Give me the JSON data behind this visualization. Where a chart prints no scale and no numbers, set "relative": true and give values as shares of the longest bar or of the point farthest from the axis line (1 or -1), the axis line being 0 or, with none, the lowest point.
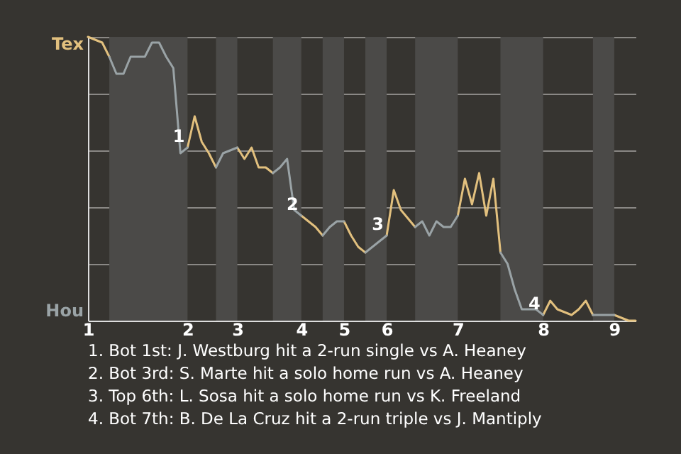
{
  "chart_data": {
    "type": "line",
    "relative": true,
    "categories": [
      "1",
      null,
      null,
      null,
      null,
      null,
      null,
      null,
      null,
      null,
      null,
      null,
      null,
      null,
      "2",
      null,
      null,
      null,
      null,
      null,
      null,
      "3",
      null,
      null,
      null,
      null,
      null,
      null,
      null,
      null,
      "4",
      null,
      null,
      null,
      null,
      null,
      "5",
      null,
      null,
      null,
      null,
      null,
      "6",
      null,
      null,
      null,
      null,
      null,
      null,
      null,
      null,
      null,
      "7",
      null,
      null,
      null,
      null,
      null,
      null,
      null,
      null,
      null,
      null,
      null,
      "8",
      null,
      null,
      null,
      null,
      null,
      null,
      null,
      null,
      null,
      "9",
      null,
      null,
      null
    ],
    "grid": "y",
    "line_style": "solid",
    "series": [
      {
        "color": "#e2c07e",
        "values": [
          1,
          0.99,
          0.98,
          0.93,
          null,
          null,
          null,
          null,
          null,
          null,
          null,
          null,
          null,
          null,
          0.61,
          0.72,
          0.63,
          0.59,
          0.54,
          null,
          null,
          0.61,
          0.57,
          0.61,
          0.54,
          0.54,
          0.52,
          null,
          null,
          null,
          0.37,
          0.35,
          0.33,
          0.3,
          null,
          null,
          0.35,
          0.3,
          0.26,
          0.24,
          null,
          null,
          0.3,
          0.46,
          0.39,
          0.36,
          0.33,
          null,
          null,
          null,
          null,
          null,
          0.37,
          0.5,
          0.41,
          0.52,
          0.37,
          0.5,
          0.24,
          null,
          null,
          null,
          null,
          null,
          0.02,
          0.07,
          0.04,
          0.03,
          0.02,
          0.04,
          0.07,
          0.02,
          null,
          null,
          0.02,
          0.01,
          0,
          0
        ]
      },
      {
        "color": "#9aa3a6",
        "values": [
          null,
          null,
          null,
          0.93,
          0.87,
          0.87,
          0.93,
          0.93,
          0.93,
          0.98,
          0.98,
          0.93,
          0.89,
          0.59,
          0.61,
          null,
          null,
          null,
          0.54,
          0.59,
          0.6,
          0.61,
          null,
          null,
          null,
          null,
          0.52,
          0.54,
          0.57,
          0.39,
          0.37,
          null,
          null,
          0.3,
          0.33,
          0.35,
          0.35,
          null,
          null,
          0.24,
          0.26,
          0.28,
          0.3,
          null,
          null,
          null,
          0.33,
          0.35,
          0.3,
          0.35,
          0.33,
          0.33,
          0.37,
          null,
          null,
          null,
          null,
          null,
          0.24,
          0.2,
          0.11,
          0.04,
          0.04,
          0.04,
          0.02,
          null,
          null,
          null,
          null,
          null,
          null,
          0.02,
          0.02,
          0.02,
          0.02,
          null,
          null,
          null
        ]
      }
    ],
    "annotations": [
      "Tex",
      "Hou",
      {
        "text": "1",
        "x": "2",
        "y": 0.61
      },
      {
        "text": "2",
        "x": "4",
        "y": 0.37
      },
      {
        "text": "3",
        "x": "6",
        "y": 0.3
      },
      {
        "text": "4",
        "x": "8",
        "y": 0.02
      },
      "1. Bot 1st: J. Westburg hit a 2-run single vs A. Heaney",
      "2. Bot 3rd: S. Marte hit a solo home run vs A. Heaney",
      "3. Top 6th: L. Sosa hit a solo home run vs K. Freeland",
      "4. Bot 7th: B. De La Cruz hit a 2-run triple vs J. Mantiply"
    ]
  }
}
